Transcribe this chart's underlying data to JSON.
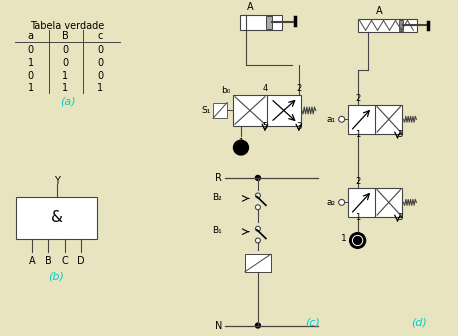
{
  "bg_color": "#e8e4c0",
  "lc": "#444444",
  "tc": "#000000",
  "cyan": "#00cccc",
  "figsize": [
    4.58,
    3.36
  ],
  "dpi": 100,
  "table_title": "Tabela verdade",
  "table_headers": [
    "a",
    "B",
    "c"
  ],
  "table_rows": [
    [
      0,
      0,
      0
    ],
    [
      1,
      0,
      0
    ],
    [
      0,
      1,
      0
    ],
    [
      1,
      1,
      1
    ]
  ],
  "label_a": "(a)",
  "label_b": "(b)",
  "label_c": "(c)",
  "label_d": "(d)",
  "gate_symbol": "&",
  "gate_inputs": [
    "A",
    "B",
    "C",
    "D"
  ],
  "gate_output": "Y"
}
